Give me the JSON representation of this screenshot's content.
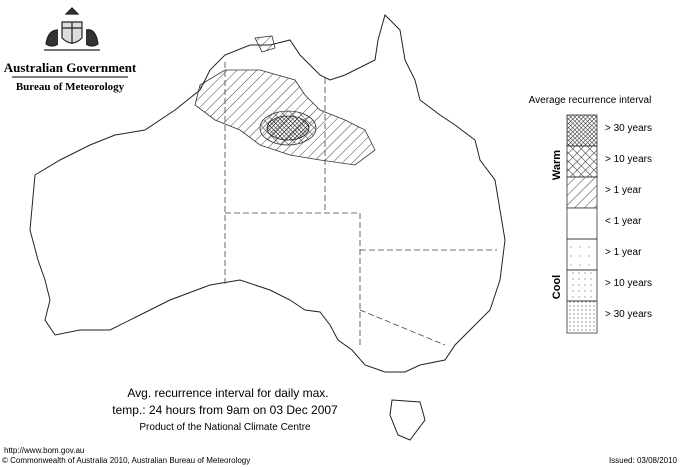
{
  "header": {
    "title": "Australian Government",
    "subtitle": "Bureau of Meteorology"
  },
  "legend": {
    "title": "Average recurrence interval",
    "warm_label": "Warm",
    "cool_label": "Cool",
    "items": [
      {
        "label": "> 30 years"
      },
      {
        "label": "> 10 years"
      },
      {
        "label": "> 1 year"
      },
      {
        "label": "< 1 year"
      },
      {
        "label": "> 1 year"
      },
      {
        "label": "> 10 years"
      },
      {
        "label": "> 30 years"
      }
    ]
  },
  "caption": {
    "line1": "Avg. recurrence interval for daily max.",
    "line2": "temp.: 24 hours from 9am on 03 Dec 2007",
    "line3": "Product of the National Climate Centre"
  },
  "footer": {
    "url": "http://www.bom.gov.au",
    "copyright": "© Commonwealth of Australia 2010, Australian Bureau of Meteorology",
    "issued": "Issued: 03/08/2010"
  }
}
